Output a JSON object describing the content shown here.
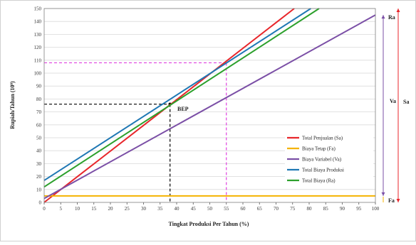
{
  "chart_data": {
    "type": "line",
    "xlabel": "Tingkat Produksi Per Tahun (%)",
    "ylabel": "Rupiah/Tahun (10⁹)",
    "xlim": [
      0,
      100
    ],
    "ylim": [
      0,
      150
    ],
    "x_ticks": [
      0,
      5,
      10,
      15,
      20,
      25,
      30,
      35,
      40,
      45,
      50,
      55,
      60,
      65,
      70,
      75,
      80,
      85,
      90,
      95,
      100
    ],
    "y_ticks": [
      0,
      10,
      20,
      30,
      40,
      50,
      60,
      70,
      80,
      90,
      100,
      110,
      120,
      130,
      140,
      150
    ],
    "x_tick_labels": [
      "0",
      "5",
      "10",
      "15",
      "20",
      "25",
      "30",
      "35",
      "40",
      "45",
      "50",
      "55",
      "60",
      "65",
      "70",
      "75",
      "80",
      "85",
      "90",
      "95",
      "100"
    ],
    "y_tick_labels": [
      "0",
      "10",
      "20",
      "30",
      "40",
      "50",
      "60",
      "70",
      "80",
      "90",
      "100",
      "110",
      "120",
      "130",
      "140",
      "150"
    ],
    "grid": true,
    "legend_position": "bottom-right",
    "series": [
      {
        "name": "Total Penjualan (Sa)",
        "color": "#e8262b",
        "x": [
          0,
          75.5
        ],
        "y": [
          0,
          150
        ]
      },
      {
        "name": "Biaya Tetap (Fa)",
        "color": "#f5b300",
        "x": [
          0,
          100
        ],
        "y": [
          5,
          5
        ]
      },
      {
        "name": "Biaya Variabel (Va)",
        "color": "#7b4fa6",
        "x": [
          0,
          100
        ],
        "y": [
          3,
          145
        ]
      },
      {
        "name": "Total Biaya Produksi",
        "color": "#1f78b4",
        "x": [
          0,
          80.5
        ],
        "y": [
          17,
          150
        ]
      },
      {
        "name": "Total Biaya (Ra)",
        "color": "#2ca02c",
        "x": [
          0,
          83
        ],
        "y": [
          12,
          150
        ]
      }
    ],
    "reference_lines": [
      {
        "kind": "bep",
        "color": "#000000",
        "x": 38,
        "y": 76
      },
      {
        "kind": "max",
        "color": "#e040e0",
        "x": 55,
        "y": 108
      }
    ],
    "annotations": [
      {
        "label": "BEP",
        "x": 38,
        "y": 76
      }
    ],
    "brackets": [
      {
        "label": "Va",
        "color": "#7b4fa6",
        "from": 5,
        "to": 145
      },
      {
        "label": "Sa",
        "color": "#e8262b",
        "from": 0,
        "to": 150
      },
      {
        "label": "Ra",
        "color": "#222222",
        "at": 145
      },
      {
        "label": "Fa",
        "color": "#222222",
        "at": 0
      }
    ]
  }
}
